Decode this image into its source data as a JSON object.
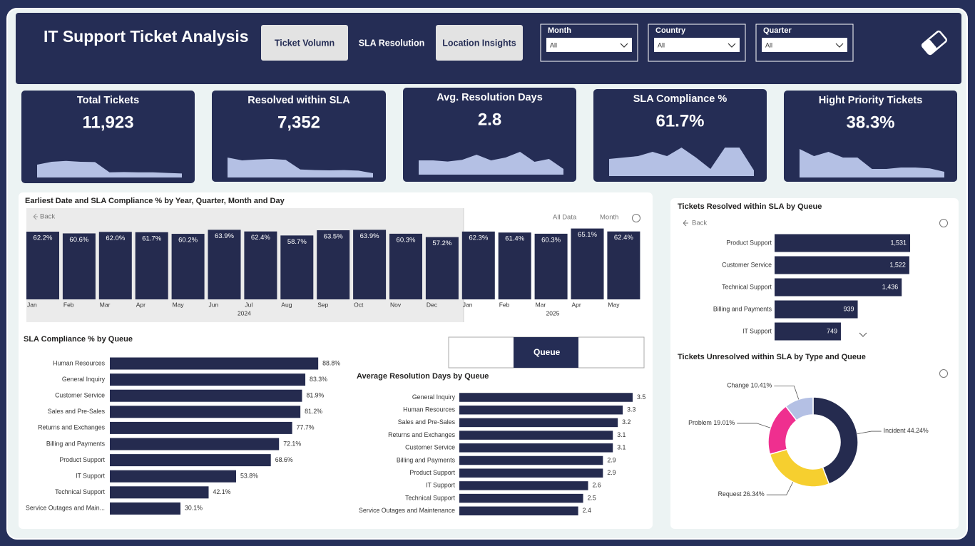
{
  "header": {
    "title": "IT Support Ticket Analysis",
    "tabs": [
      "Ticket Volumn",
      "SLA Resolution",
      "Location Insights"
    ],
    "filters": [
      {
        "label": "Month",
        "value": "All"
      },
      {
        "label": "Country",
        "value": "All"
      },
      {
        "label": "Quarter",
        "value": "All"
      }
    ]
  },
  "kpis": [
    {
      "title": "Total Tickets",
      "value": "11,923",
      "trend": [
        4.5,
        5.5,
        5.8,
        5.5,
        5.4,
        1.8,
        1.9,
        1.8,
        1.8,
        1.6,
        1.4
      ]
    },
    {
      "title": "Resolved within SLA",
      "value": "7,352",
      "trend": [
        7,
        6,
        6.3,
        6.5,
        6.2,
        2.8,
        2.6,
        2.5,
        2.6,
        2.4,
        1.5
      ]
    },
    {
      "title": "Avg. Resolution Days",
      "value": "2.8",
      "trend": [
        5,
        5,
        4.6,
        5.2,
        7,
        5,
        6,
        8,
        4.5,
        5.5,
        2
      ]
    },
    {
      "title": "SLA Compliance %",
      "value": "61.7%",
      "trend": [
        6,
        6.5,
        7,
        8.5,
        7,
        10,
        6.5,
        2.5,
        10,
        10,
        2
      ]
    },
    {
      "title": "Hight Priority Tickets",
      "value": "38.3%",
      "trend": [
        10,
        7.5,
        9,
        7,
        7,
        3,
        3,
        3.5,
        3.5,
        3.2,
        2
      ]
    }
  ],
  "chart_data": [
    {
      "type": "column",
      "title": "Earliest Date and SLA Compliance % by Year, Quarter, Month and Day",
      "controls": [
        "Back",
        "All Data",
        "Month"
      ],
      "color": "#252b4f",
      "ylim": [
        0,
        66
      ],
      "groups": [
        {
          "name": "2024",
          "categories": [
            "Jan",
            "Feb",
            "Mar",
            "Apr",
            "May",
            "Jun",
            "Jul",
            "Aug",
            "Sep",
            "Oct",
            "Nov",
            "Dec"
          ],
          "values": [
            62.2,
            60.6,
            62.0,
            61.7,
            60.2,
            63.9,
            62.4,
            58.7,
            63.5,
            63.9,
            60.3,
            57.2
          ],
          "value_labels": [
            "62.2%",
            "60.6%",
            "62.0%",
            "61.7%",
            "60.2%",
            "63.9%",
            "62.4%",
            "58.7%",
            "63.5%",
            "63.9%",
            "60.3%",
            "57.2%"
          ]
        },
        {
          "name": "2025",
          "categories": [
            "Jan",
            "Feb",
            "Mar",
            "Apr",
            "May"
          ],
          "values": [
            62.3,
            61.4,
            60.3,
            65.1,
            62.4
          ],
          "value_labels": [
            "62.3%",
            "61.4%",
            "60.3%",
            "65.1%",
            "62.4%"
          ]
        }
      ]
    },
    {
      "type": "bar",
      "title": "SLA Compliance % by Queue",
      "color": "#252b4f",
      "xlim": [
        0,
        100
      ],
      "categories": [
        "Human Resources",
        "General Inquiry",
        "Customer Service",
        "Sales and Pre-Sales",
        "Returns and Exchanges",
        "Billing and Payments",
        "Product Support",
        "IT Support",
        "Technical Support",
        "Service Outages and Main..."
      ],
      "values": [
        88.8,
        83.3,
        81.9,
        81.2,
        77.7,
        72.1,
        68.6,
        53.8,
        42.1,
        30.1
      ],
      "value_labels": [
        "88.8%",
        "83.3%",
        "81.9%",
        "81.2%",
        "77.7%",
        "72.1%",
        "68.6%",
        "53.8%",
        "42.1%",
        "30.1%"
      ]
    },
    {
      "type": "bar",
      "title": "Average Resolution Days by Queue",
      "color": "#252b4f",
      "xlim": [
        0,
        3.5
      ],
      "categories": [
        "General Inquiry",
        "Human Resources",
        "Sales and Pre-Sales",
        "Returns and Exchanges",
        "Customer Service",
        "Billing and Payments",
        "Product Support",
        "IT Support",
        "Technical Support",
        "Service Outages and Maintenance"
      ],
      "values": [
        3.5,
        3.3,
        3.2,
        3.1,
        3.1,
        2.9,
        2.9,
        2.6,
        2.5,
        2.4
      ]
    },
    {
      "type": "bar",
      "title": "Tickets Resolved within SLA by Queue",
      "controls": [
        "Back"
      ],
      "color": "#252b4f",
      "xlim": [
        0,
        1600
      ],
      "categories": [
        "Product Support",
        "Customer Service",
        "Technical Support",
        "Billing and Payments",
        "IT Support"
      ],
      "values": [
        1531,
        1522,
        1436,
        939,
        749
      ],
      "value_labels": [
        "1,531",
        "1,522",
        "1,436",
        "939",
        "749"
      ]
    },
    {
      "type": "donut",
      "title": "Tickets Unresolved within SLA by Type and Queue",
      "categories": [
        "Incident",
        "Request",
        "Problem",
        "Change"
      ],
      "values": [
        44.24,
        26.34,
        19.01,
        10.41
      ],
      "value_labels": [
        "44.24%",
        "26.34%",
        "19.01%",
        "10.41%"
      ],
      "colors": [
        "#252b4f",
        "#f6cf2f",
        "#ef2f8f",
        "#b4c0e4"
      ]
    }
  ],
  "queue_slicer": {
    "label": "Queue"
  }
}
